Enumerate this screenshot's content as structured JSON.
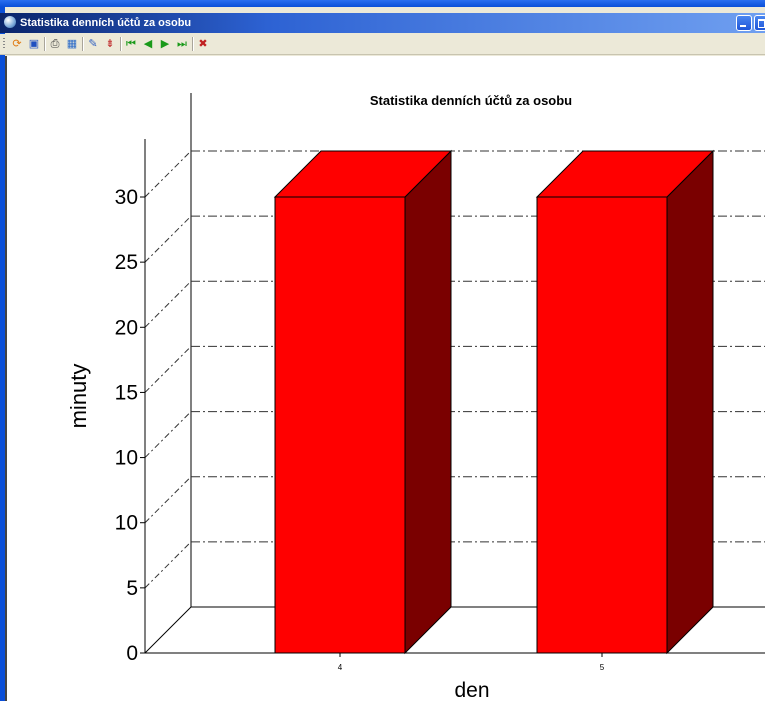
{
  "window": {
    "title": "Statistika denních účtů za osobu"
  },
  "toolbar": {
    "buttons": [
      {
        "name": "refresh-icon",
        "color": "#e07a10"
      },
      {
        "name": "save-icon",
        "color": "#2050c0"
      },
      {
        "name": "print-icon",
        "color": "#3a3a3a"
      },
      {
        "name": "page-setup-icon",
        "color": "#2a6ac8"
      },
      {
        "name": "export-icon",
        "color": "#3060c0"
      },
      {
        "name": "zoom-icon",
        "color": "#c03030"
      },
      {
        "name": "first-page-icon",
        "color": "#1a9a1a"
      },
      {
        "name": "prev-page-icon",
        "color": "#1a9a1a"
      },
      {
        "name": "next-page-icon",
        "color": "#1a9a1a"
      },
      {
        "name": "last-page-icon",
        "color": "#1a9a1a"
      },
      {
        "name": "close-report-icon",
        "color": "#c02020"
      }
    ]
  },
  "chart_data": {
    "type": "bar",
    "title": "Statistika denních účtů za osobu",
    "xlabel": "den",
    "ylabel": "minuty",
    "categories": [
      "4",
      "5"
    ],
    "series": [
      {
        "values": [
          30,
          30
        ],
        "color": "#ff0000"
      }
    ],
    "ylim": [
      0,
      35
    ],
    "y_tick_labels": [
      "0",
      "5",
      "10",
      "10",
      "15",
      "20",
      "25",
      "30"
    ],
    "grid": true,
    "style": "3d"
  },
  "colors": {
    "bar_front": "#ff0000",
    "bar_top": "#ff0000",
    "bar_side": "#7a0000",
    "grid": "#333333"
  }
}
